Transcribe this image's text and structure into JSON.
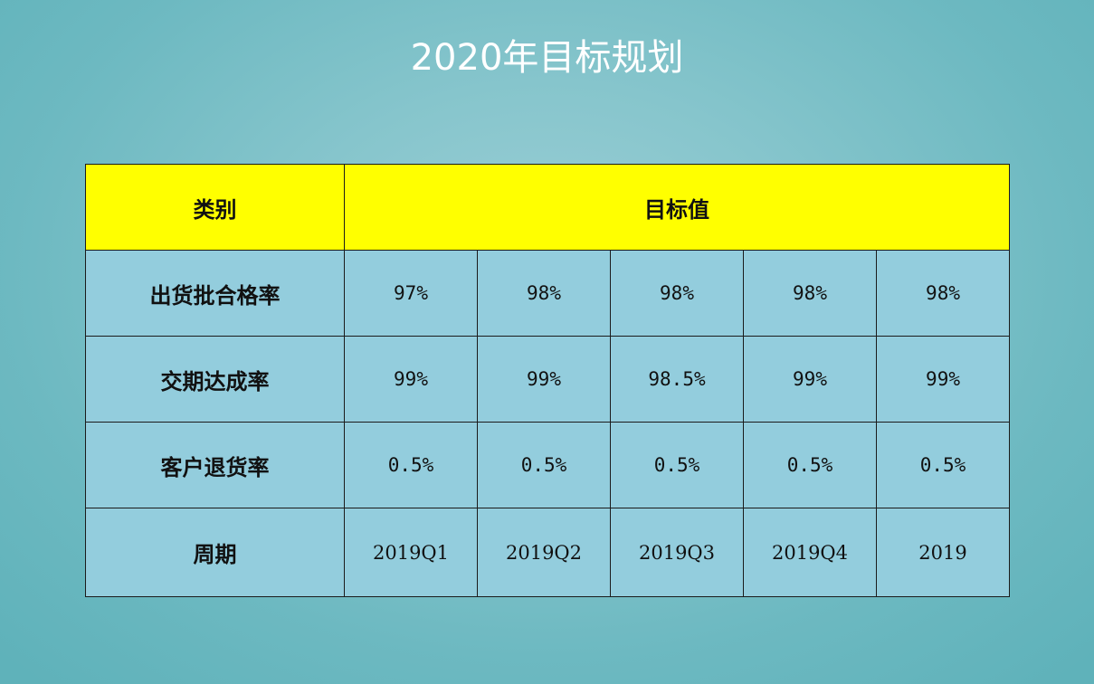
{
  "title": "2020年目标规划",
  "colors": {
    "header_bg": "#ffff00",
    "cell_bg": "#93cddd",
    "title_text": "#ffffff"
  },
  "table": {
    "header": {
      "category": "类别",
      "target": "目标值"
    },
    "rows": [
      {
        "label": "出货批合格率",
        "values": [
          "97%",
          "98%",
          "98%",
          "98%",
          "98%"
        ]
      },
      {
        "label": "交期达成率",
        "values": [
          "99%",
          "99%",
          "98.5%",
          "99%",
          "99%"
        ]
      },
      {
        "label": "客户退货率",
        "values": [
          "0.5%",
          "0.5%",
          "0.5%",
          "0.5%",
          "0.5%"
        ]
      },
      {
        "label": "周期",
        "values": [
          "2019Q1",
          "2019Q2",
          "2019Q3",
          "2019Q4",
          "2019"
        ]
      }
    ]
  }
}
